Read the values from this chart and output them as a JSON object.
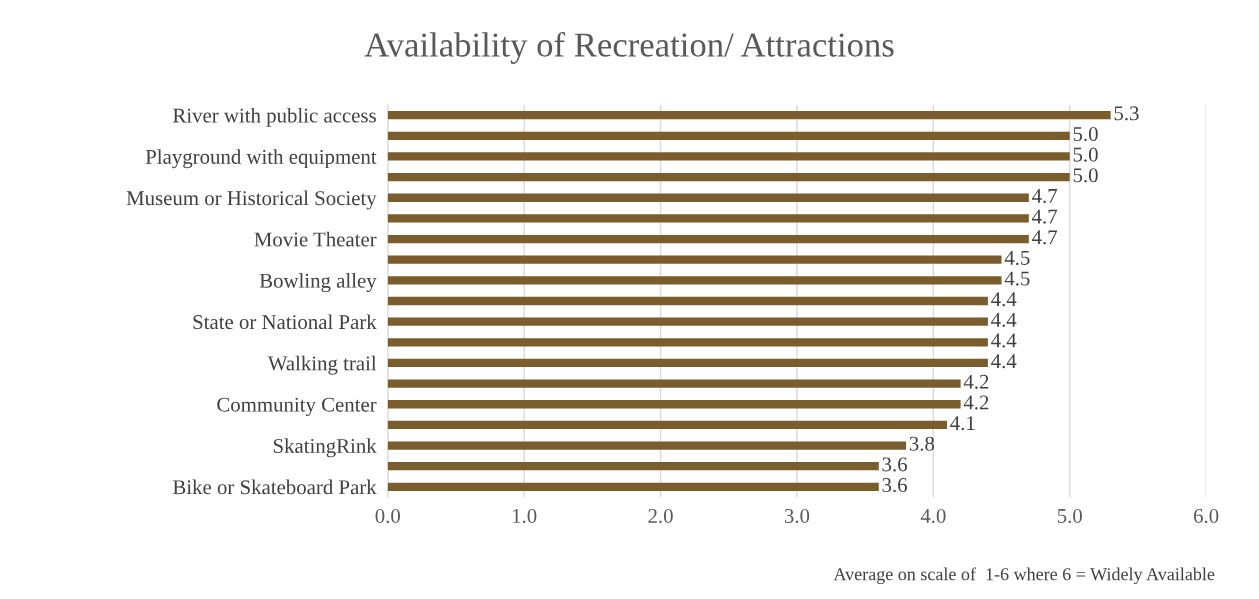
{
  "chart_data": {
    "type": "bar",
    "orientation": "horizontal",
    "title": "Availability of Recreation/ Attractions",
    "categories": [
      "River with public access",
      null,
      "Playground with equipment",
      null,
      "Museum or Historical Society",
      null,
      "Movie Theater",
      null,
      "Bowling alley",
      null,
      "State or National Park",
      null,
      "Walking trail",
      null,
      "Community Center",
      null,
      "SkatingRink",
      null,
      "Bike or Skateboard Park"
    ],
    "values": [
      5.3,
      5.0,
      5.0,
      5.0,
      4.7,
      4.7,
      4.7,
      4.5,
      4.5,
      4.4,
      4.4,
      4.4,
      4.4,
      4.2,
      4.2,
      4.1,
      3.8,
      3.6,
      3.6
    ],
    "color": "#7b5c2c",
    "xlim": [
      0,
      6
    ],
    "xticks": [
      {
        "value": 0,
        "label": "0.0"
      },
      {
        "value": 1,
        "label": "1.0"
      },
      {
        "value": 2,
        "label": "2.0"
      },
      {
        "value": 3,
        "label": "3.0"
      },
      {
        "value": 4,
        "label": "4.0"
      },
      {
        "value": 5,
        "label": "5.0"
      },
      {
        "value": 6,
        "label": "6.0"
      }
    ],
    "grid": "x",
    "value_labels": [
      "5.3",
      "5.0",
      "5.0",
      "5.0",
      "4.7",
      "4.7",
      "4.7",
      "4.5",
      "4.5",
      "4.4",
      "4.4",
      "4.4",
      "4.4",
      "4.2",
      "4.2",
      "4.1",
      "3.8",
      "3.6",
      "3.6"
    ],
    "annotations": [
      "Average on scale of  1-6 where 6 = Widely Available"
    ]
  }
}
